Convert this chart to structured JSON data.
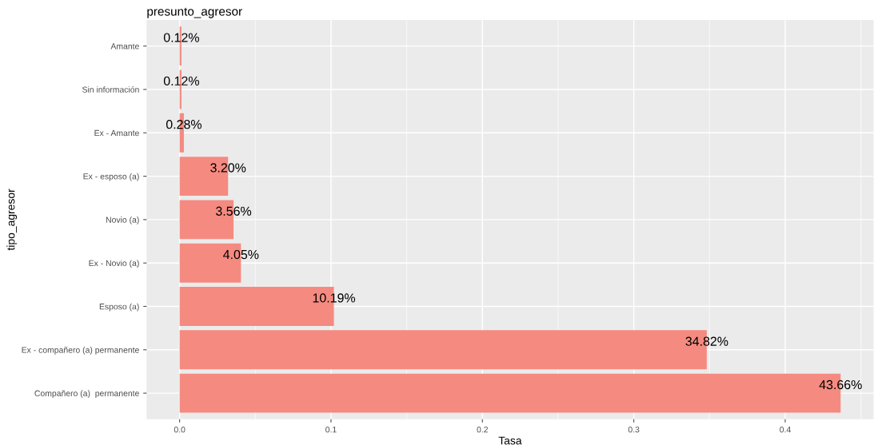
{
  "chart_data": {
    "type": "bar",
    "orientation": "horizontal",
    "title": "presunto_agresor",
    "xlabel": "Tasa",
    "ylabel": "tipo_agresor",
    "categories": [
      "Amante",
      "Sin información",
      "Ex - Amante",
      "Ex - esposo (a)",
      "Novio (a)",
      "Ex - Novio (a)",
      "Esposo (a)",
      "Ex - compañero (a) permanente",
      "Compañero (a)  permanente"
    ],
    "values": [
      0.0012,
      0.0012,
      0.0028,
      0.032,
      0.0356,
      0.0405,
      0.1019,
      0.3482,
      0.4366
    ],
    "value_labels": [
      "0.12%",
      "0.12%",
      "0.28%",
      "3.20%",
      "3.56%",
      "4.05%",
      "10.19%",
      "34.82%",
      "43.66%"
    ],
    "color": "#f58a80",
    "xlim": [
      -0.0218,
      0.4584
    ],
    "xticks": [
      {
        "value": 0,
        "label": "0.0"
      },
      0.1,
      0.2,
      0.3,
      0.4
    ],
    "grid": true
  }
}
